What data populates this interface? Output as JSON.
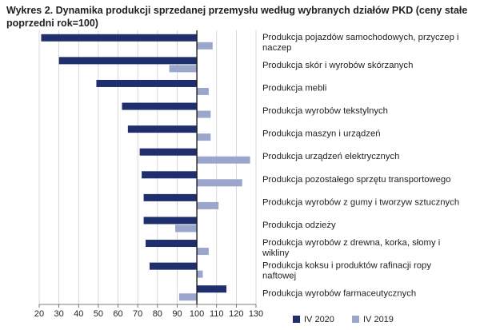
{
  "chart_data": {
    "type": "bar",
    "orientation": "horizontal",
    "title": "Wykres 2. Dynamika produkcji sprzedanej przemysłu według wybranych działów PKD (ceny stałe poprzedni rok=100)",
    "categories": [
      [
        "Produkcja pojazdów samochodowych, przyczep i",
        "naczep"
      ],
      [
        "Produkcja skór i wyrobów skórzanych"
      ],
      [
        "Produkcja mebli"
      ],
      [
        "Produkcja wyrobów tekstylnych"
      ],
      [
        "Produkcja maszyn i urządzeń"
      ],
      [
        "Produkcja urządzeń elektrycznych"
      ],
      [
        "Produkcja pozostałego sprzętu transportowego"
      ],
      [
        "Produkcja wyrobów z gumy i tworzyw sztucznych"
      ],
      [
        "Produkcja odzieży"
      ],
      [
        "Produkcja wyrobów z drewna, korka, słomy i",
        "wikliny"
      ],
      [
        "Produkcja koksu i produktów rafinacji ropy",
        "naftowej"
      ],
      [
        "Produkcja wyrobów farmaceutycznych"
      ]
    ],
    "series": [
      {
        "name": "IV 2020",
        "color": "#1f2f6e",
        "values": [
          21,
          30,
          49,
          62,
          65,
          71,
          72,
          73,
          73,
          74,
          76,
          115
        ]
      },
      {
        "name": "IV 2019",
        "color": "#9aa6cc",
        "values": [
          108,
          86,
          106,
          107,
          107,
          127,
          123,
          111,
          89,
          106,
          103,
          91
        ]
      }
    ],
    "baseline": 100,
    "xlim": [
      20,
      130
    ],
    "xticks": [
      "20",
      "30",
      "40",
      "50",
      "60",
      "70",
      "80",
      "90",
      "100",
      "110",
      "120",
      "130"
    ],
    "grid": "vertical",
    "legend_position": "bottom-right"
  }
}
